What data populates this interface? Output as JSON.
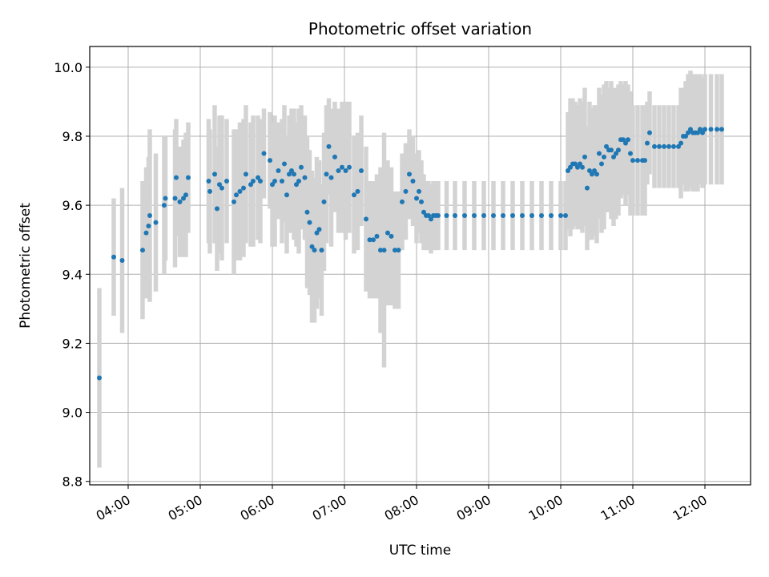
{
  "chart_data": {
    "type": "scatter",
    "title": "Photometric offset variation",
    "xlabel": "UTC time",
    "ylabel": "Photometric offset",
    "x_unit": "hours UTC",
    "xlim": [
      "03:28",
      "12:38"
    ],
    "ylim": [
      8.79,
      10.06
    ],
    "xticks": [
      "04:00",
      "05:00",
      "06:00",
      "07:00",
      "08:00",
      "09:00",
      "10:00",
      "11:00",
      "12:00"
    ],
    "yticks": [
      "8.8",
      "9.0",
      "9.2",
      "9.4",
      "9.6",
      "9.8",
      "10.0"
    ],
    "grid": true,
    "legend": "none",
    "colors": {
      "marker": "#1f77b4",
      "errorbar": "#d3d3d3",
      "grid": "#b0b0b0"
    },
    "series": [
      {
        "x": [
          "03:36",
          "03:48",
          "03:55",
          "04:12",
          "04:15",
          "04:17",
          "04:18",
          "04:23",
          "04:30",
          "04:31",
          "04:39",
          "04:40",
          "04:43",
          "04:46",
          "04:48",
          "04:50",
          "05:07",
          "05:08",
          "05:12",
          "05:14",
          "05:16",
          "05:18",
          "05:22",
          "05:28",
          "05:30",
          "05:33",
          "05:36",
          "05:38",
          "05:42",
          "05:44",
          "05:48",
          "05:50",
          "05:53",
          "05:58",
          "06:00",
          "06:02",
          "06:05",
          "06:08",
          "06:10",
          "06:12",
          "06:14",
          "06:16",
          "06:18",
          "06:20",
          "06:22",
          "06:24",
          "06:27",
          "06:29",
          "06:31",
          "06:33",
          "06:35",
          "06:37",
          "06:39",
          "06:41",
          "06:43",
          "06:45",
          "06:47",
          "06:49",
          "06:52",
          "06:55",
          "06:58",
          "07:01",
          "07:04",
          "07:08",
          "07:11",
          "07:14",
          "07:18",
          "07:21",
          "07:24",
          "07:27",
          "07:30",
          "07:33",
          "07:36",
          "07:39",
          "07:42",
          "07:45",
          "07:48",
          "07:51",
          "07:54",
          "07:57",
          "08:00",
          "08:02",
          "08:04",
          "08:06",
          "08:08",
          "08:10",
          "08:12",
          "08:14",
          "08:16",
          "08:18",
          "08:25",
          "08:32",
          "08:40",
          "08:48",
          "08:56",
          "09:04",
          "09:12",
          "09:20",
          "09:28",
          "09:36",
          "09:44",
          "09:52",
          "10:00",
          "10:04",
          "10:06",
          "10:08",
          "10:10",
          "10:12",
          "10:14",
          "10:16",
          "10:18",
          "10:20",
          "10:22",
          "10:24",
          "10:26",
          "10:28",
          "10:30",
          "10:32",
          "10:34",
          "10:36",
          "10:38",
          "10:40",
          "10:42",
          "10:44",
          "10:46",
          "10:48",
          "10:50",
          "10:52",
          "10:54",
          "10:56",
          "10:58",
          "11:00",
          "11:04",
          "11:08",
          "11:10",
          "11:12",
          "11:14",
          "11:18",
          "11:22",
          "11:26",
          "11:30",
          "11:34",
          "11:38",
          "11:40",
          "11:42",
          "11:44",
          "11:46",
          "11:48",
          "11:50",
          "11:52",
          "11:54",
          "11:56",
          "11:58",
          "12:00",
          "12:05",
          "12:10",
          "12:14"
        ],
        "y": [
          9.1,
          9.45,
          9.44,
          9.47,
          9.52,
          9.54,
          9.57,
          9.55,
          9.6,
          9.62,
          9.62,
          9.68,
          9.61,
          9.62,
          9.63,
          9.68,
          9.67,
          9.64,
          9.69,
          9.59,
          9.66,
          9.65,
          9.67,
          9.61,
          9.63,
          9.64,
          9.65,
          9.69,
          9.66,
          9.67,
          9.68,
          9.67,
          9.75,
          9.73,
          9.66,
          9.67,
          9.7,
          9.67,
          9.72,
          9.63,
          9.69,
          9.7,
          9.69,
          9.66,
          9.67,
          9.71,
          9.68,
          9.58,
          9.55,
          9.48,
          9.47,
          9.52,
          9.53,
          9.47,
          9.61,
          9.69,
          9.77,
          9.68,
          9.74,
          9.7,
          9.71,
          9.7,
          9.71,
          9.63,
          9.64,
          9.7,
          9.56,
          9.5,
          9.5,
          9.51,
          9.47,
          9.47,
          9.52,
          9.51,
          9.47,
          9.47,
          9.61,
          9.64,
          9.69,
          9.67,
          9.62,
          9.64,
          9.61,
          9.58,
          9.57,
          9.57,
          9.56,
          9.57,
          9.57,
          9.57,
          9.57,
          9.57,
          9.57,
          9.57,
          9.57,
          9.57,
          9.57,
          9.57,
          9.57,
          9.57,
          9.57,
          9.57,
          9.57,
          9.57,
          9.7,
          9.71,
          9.72,
          9.72,
          9.71,
          9.72,
          9.71,
          9.74,
          9.65,
          9.7,
          9.69,
          9.7,
          9.69,
          9.75,
          9.72,
          9.74,
          9.77,
          9.76,
          9.76,
          9.74,
          9.75,
          9.76,
          9.79,
          9.79,
          9.78,
          9.79,
          9.75,
          9.73,
          9.73,
          9.73,
          9.73,
          9.78,
          9.81,
          9.77,
          9.77,
          9.77,
          9.77,
          9.77,
          9.77,
          9.78,
          9.8,
          9.8,
          9.81,
          9.82,
          9.81,
          9.81,
          9.81,
          9.82,
          9.81,
          9.82,
          9.82,
          9.82,
          9.82
        ],
        "yerr": [
          0.26,
          0.17,
          0.21,
          0.2,
          0.19,
          0.2,
          0.25,
          0.2,
          0.2,
          0.18,
          0.2,
          0.17,
          0.16,
          0.17,
          0.18,
          0.16,
          0.18,
          0.18,
          0.2,
          0.18,
          0.2,
          0.21,
          0.18,
          0.21,
          0.19,
          0.2,
          0.2,
          0.2,
          0.18,
          0.19,
          0.18,
          0.18,
          0.13,
          0.14,
          0.18,
          0.19,
          0.14,
          0.18,
          0.17,
          0.17,
          0.17,
          0.18,
          0.19,
          0.18,
          0.21,
          0.18,
          0.18,
          0.22,
          0.21,
          0.22,
          0.21,
          0.22,
          0.2,
          0.19,
          0.2,
          0.2,
          0.14,
          0.2,
          0.16,
          0.18,
          0.19,
          0.2,
          0.19,
          0.17,
          0.17,
          0.16,
          0.21,
          0.17,
          0.17,
          0.18,
          0.24,
          0.34,
          0.21,
          0.2,
          0.17,
          0.17,
          0.14,
          0.14,
          0.13,
          0.13,
          0.13,
          0.12,
          0.12,
          0.11,
          0.1,
          0.1,
          0.1,
          0.1,
          0.1,
          0.1,
          0.1,
          0.1,
          0.1,
          0.1,
          0.1,
          0.1,
          0.1,
          0.1,
          0.1,
          0.1,
          0.1,
          0.1,
          0.1,
          0.1,
          0.17,
          0.2,
          0.19,
          0.18,
          0.18,
          0.19,
          0.19,
          0.2,
          0.18,
          0.2,
          0.19,
          0.19,
          0.2,
          0.19,
          0.2,
          0.21,
          0.19,
          0.18,
          0.2,
          0.2,
          0.19,
          0.19,
          0.17,
          0.16,
          0.18,
          0.16,
          0.18,
          0.16,
          0.16,
          0.16,
          0.16,
          0.12,
          0.12,
          0.12,
          0.12,
          0.12,
          0.12,
          0.12,
          0.12,
          0.16,
          0.14,
          0.16,
          0.17,
          0.17,
          0.17,
          0.17,
          0.17,
          0.16,
          0.16,
          0.16,
          0.16,
          0.16,
          0.16
        ]
      }
    ]
  }
}
